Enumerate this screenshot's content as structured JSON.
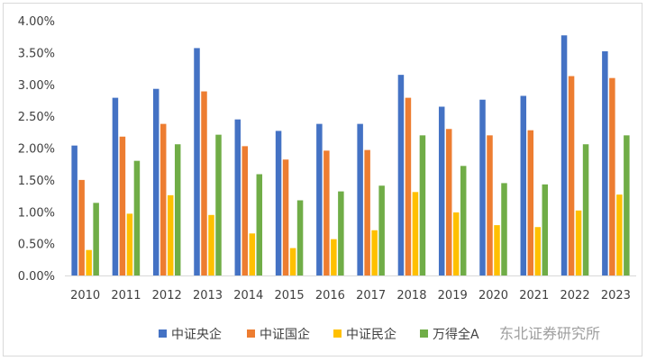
{
  "chart_data": {
    "type": "bar",
    "title": "",
    "xlabel": "",
    "ylabel": "",
    "categories": [
      "2010",
      "2011",
      "2012",
      "2013",
      "2014",
      "2015",
      "2016",
      "2017",
      "2018",
      "2019",
      "2020",
      "2021",
      "2022",
      "2023"
    ],
    "series": [
      {
        "name": "中证央企",
        "color": "#4472c4",
        "values": [
          2.04,
          2.79,
          2.93,
          3.57,
          2.45,
          2.27,
          2.38,
          2.38,
          3.15,
          2.65,
          2.76,
          2.82,
          3.77,
          3.52
        ]
      },
      {
        "name": "中证国企",
        "color": "#ed7d31",
        "values": [
          1.5,
          2.18,
          2.38,
          2.89,
          2.03,
          1.82,
          1.96,
          1.97,
          2.79,
          2.3,
          2.2,
          2.28,
          3.13,
          3.1
        ]
      },
      {
        "name": "中证民企",
        "color": "#ffc000",
        "values": [
          0.4,
          0.97,
          1.26,
          0.95,
          0.66,
          0.43,
          0.57,
          0.71,
          1.31,
          0.99,
          0.79,
          0.76,
          1.02,
          1.27
        ]
      },
      {
        "name": "万得全A",
        "color": "#70ad47",
        "values": [
          1.14,
          1.8,
          2.06,
          2.21,
          1.59,
          1.18,
          1.32,
          1.41,
          2.2,
          1.72,
          1.45,
          1.43,
          2.06,
          2.2
        ]
      }
    ],
    "yticks": [
      "0.00%",
      "0.50%",
      "1.00%",
      "1.50%",
      "2.00%",
      "2.50%",
      "3.00%",
      "3.50%",
      "4.00%"
    ],
    "ylim": [
      0,
      4.0
    ],
    "grid": false,
    "legend_position": "bottom"
  },
  "watermark": "东北证券研究所"
}
